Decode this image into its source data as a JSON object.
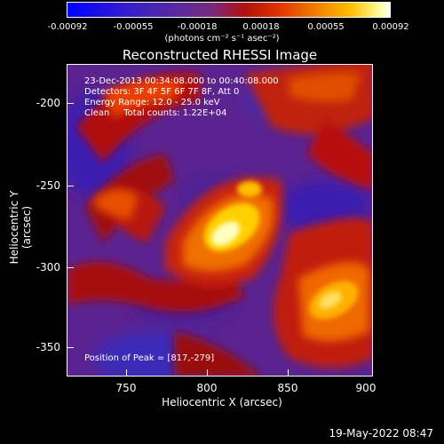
{
  "colorbar": {
    "ticks": [
      "-0.00092",
      "-0.00055",
      "-0.00018",
      "0.00018",
      "0.00055",
      "0.00092"
    ],
    "units": "(photons cm⁻² s⁻¹ asec⁻²)"
  },
  "title": "Reconstructed RHESSI Image",
  "info": {
    "time_range": "23-Dec-2013 00:34:08.000 to 00:40:08.000",
    "detectors": "Detectors: 3F 4F 5F 6F 7F 8F, Att 0",
    "energy": "Energy Range: 12.0 - 25.0 keV",
    "clean": "Clean     Total counts: 1.22E+04",
    "peak": "Position of Peak = [817,-279]"
  },
  "axes": {
    "xlabel": "Heliocentric X (arcsec)",
    "ylabel": "Heliocentric Y (arcsec)",
    "xticks": [
      "750",
      "800",
      "850",
      "900"
    ],
    "yticks": [
      "-200",
      "-250",
      "-300",
      "-350"
    ]
  },
  "datestamp": "19-May-2022 08:47"
}
